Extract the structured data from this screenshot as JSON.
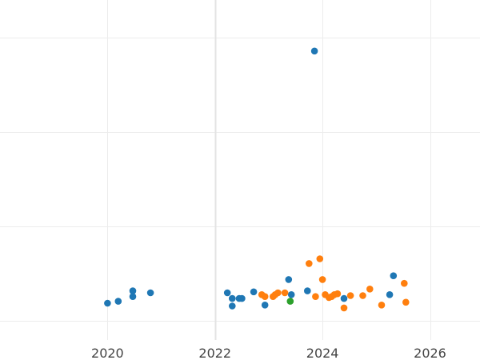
{
  "chart_data": {
    "type": "scatter",
    "title": "",
    "xlabel": "",
    "ylabel": "",
    "xlim": [
      2018,
      2026.93
    ],
    "ylim": [
      -0.2,
      3.4
    ],
    "x_ticks": [
      2020,
      2022,
      2024,
      2026
    ],
    "x_tick_labels": [
      "2020",
      "2022",
      "2024",
      "2026"
    ],
    "y_gridlines": [
      0,
      1,
      2,
      3
    ],
    "y_tick_labels_shown": false,
    "grid": true,
    "legend": "none",
    "series": [
      {
        "color": "#1f77b4",
        "points": [
          [
            2020.0,
            0.19
          ],
          [
            2020.2,
            0.21
          ],
          [
            2020.47,
            0.32
          ],
          [
            2020.47,
            0.26
          ],
          [
            2020.8,
            0.3
          ],
          [
            2022.23,
            0.3
          ],
          [
            2022.32,
            0.24
          ],
          [
            2022.32,
            0.16
          ],
          [
            2022.45,
            0.24
          ],
          [
            2022.5,
            0.24
          ],
          [
            2022.72,
            0.31
          ],
          [
            2022.93,
            0.17
          ],
          [
            2023.37,
            0.44
          ],
          [
            2023.42,
            0.28
          ],
          [
            2023.85,
            2.86
          ],
          [
            2023.72,
            0.32
          ],
          [
            2024.4,
            0.24
          ],
          [
            2025.25,
            0.28
          ],
          [
            2025.32,
            0.48
          ]
        ]
      },
      {
        "color": "#ff7f0e",
        "points": [
          [
            2022.87,
            0.28
          ],
          [
            2022.93,
            0.26
          ],
          [
            2023.08,
            0.26
          ],
          [
            2023.12,
            0.28
          ],
          [
            2023.17,
            0.3
          ],
          [
            2023.3,
            0.3
          ],
          [
            2023.75,
            0.61
          ],
          [
            2023.87,
            0.26
          ],
          [
            2023.95,
            0.66
          ],
          [
            2024.0,
            0.44
          ],
          [
            2024.05,
            0.28
          ],
          [
            2024.12,
            0.25
          ],
          [
            2024.17,
            0.26
          ],
          [
            2024.22,
            0.28
          ],
          [
            2024.28,
            0.29
          ],
          [
            2024.4,
            0.14
          ],
          [
            2024.52,
            0.27
          ],
          [
            2024.75,
            0.27
          ],
          [
            2024.88,
            0.34
          ],
          [
            2025.1,
            0.17
          ],
          [
            2025.52,
            0.4
          ],
          [
            2025.55,
            0.2
          ]
        ]
      },
      {
        "color": "#2ca02c",
        "points": [
          [
            2023.4,
            0.21
          ]
        ]
      }
    ]
  }
}
